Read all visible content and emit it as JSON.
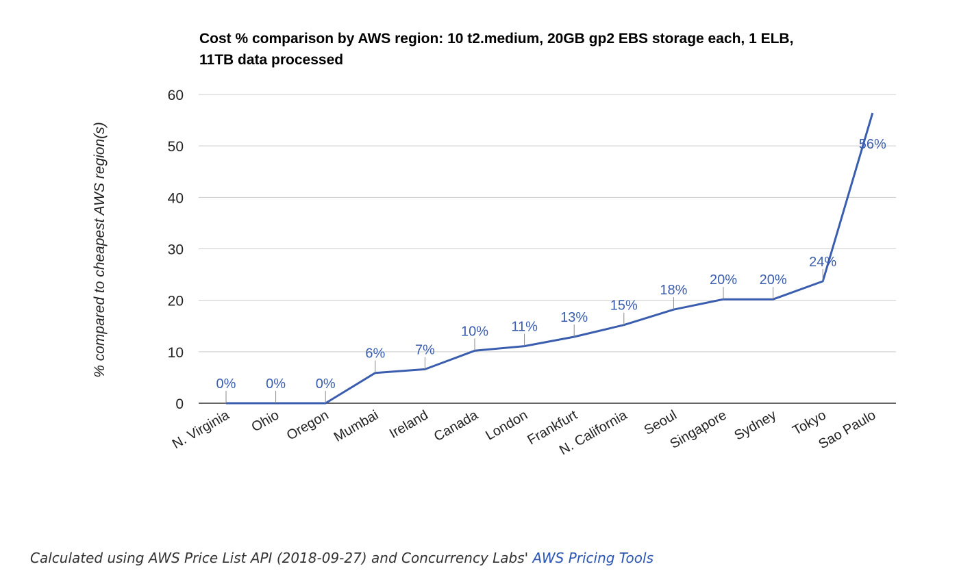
{
  "chart_data": {
    "type": "line",
    "title_line1": "Cost % comparison by AWS region: 10 t2.medium, 20GB gp2 EBS storage each, 1 ELB,",
    "title_line2": "11TB data processed",
    "xlabel": "",
    "ylabel": "% compared to cheapest AWS region(s)",
    "ylim": [
      0,
      60
    ],
    "yticks": [
      0,
      10,
      20,
      30,
      40,
      50,
      60
    ],
    "grid": true,
    "legend": "none",
    "categories": [
      "N. Virginia",
      "Ohio",
      "Oregon",
      "Mumbai",
      "Ireland",
      "Canada",
      "London",
      "Frankfurt",
      "N. California",
      "Seoul",
      "Singapore",
      "Sydney",
      "Tokyo",
      "Sao Paulo"
    ],
    "series": [
      {
        "values": [
          0,
          0,
          0,
          5.9,
          6.6,
          10.2,
          11.1,
          12.9,
          15.2,
          18.2,
          20.2,
          20.2,
          23.7,
          56.4
        ],
        "labels": [
          "0%",
          "0%",
          "0%",
          "6%",
          "7%",
          "10%",
          "11%",
          "13%",
          "15%",
          "18%",
          "20%",
          "20%",
          "24%",
          "56%"
        ],
        "color": "#3a5dae"
      }
    ]
  },
  "caption": {
    "text": "Calculated using AWS Price List API (2018-09-27) and Concurrency Labs' ",
    "link_text": "AWS Pricing Tools",
    "link_color": "#2a55b5"
  }
}
